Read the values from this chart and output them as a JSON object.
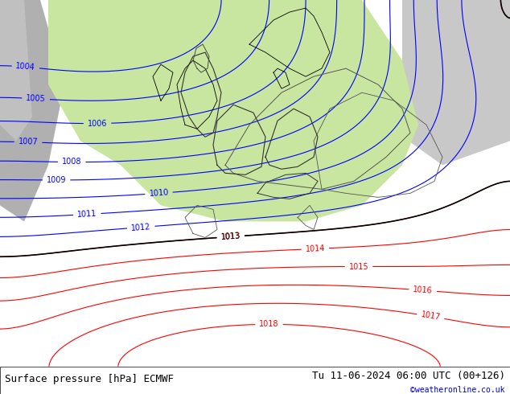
{
  "title_left": "Surface pressure [hPa] ECMWF",
  "title_right": "Tu 11-06-2024 06:00 UTC (00+126)",
  "credit": "©weatheronline.co.uk",
  "bg_color": "#b5d89a",
  "land_color": "#c8e6a0",
  "sea_color": "#d0e8f0",
  "gray_color": "#c0c0c0",
  "footer_bg": "#ffffff",
  "footer_text_color": "#000000",
  "credit_color": "#0000cc",
  "isobar_blue_color": "#0000ff",
  "isobar_red_color": "#ff0000",
  "isobar_black_color": "#000000",
  "label_fontsize": 7,
  "footer_fontsize": 9,
  "fig_width": 6.34,
  "fig_height": 4.9,
  "dpi": 100
}
